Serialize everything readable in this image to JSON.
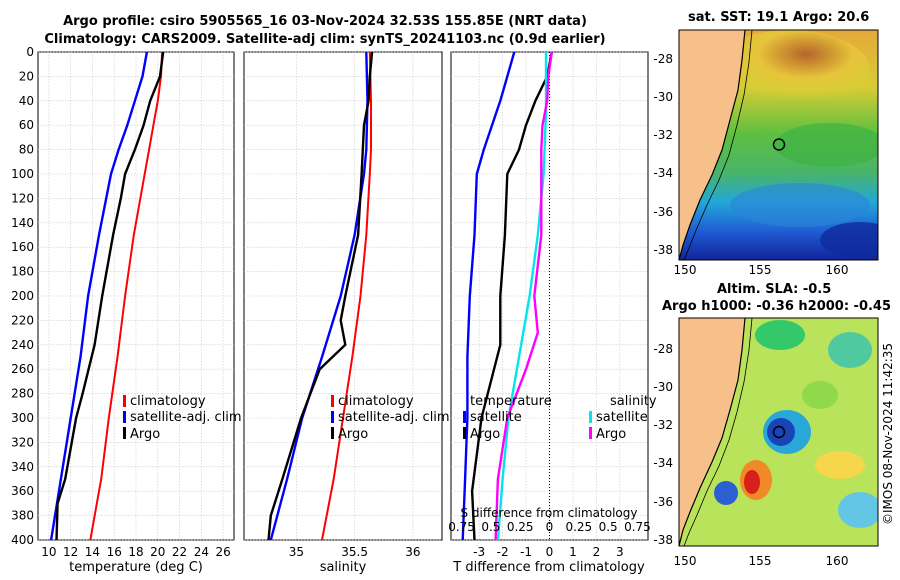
{
  "header": {
    "title_line1": "Argo profile: csiro 5905565_16 03-Nov-2024 32.53S 155.85E (NRT data)",
    "title_line2": "Climatology: CARS2009. Satellite-adj clim: synTS_20241103.nc (0.9d earlier)"
  },
  "maps": {
    "sst_title": "sat. SST: 19.1 Argo: 20.6",
    "sla_title_line1": "Altim. SLA: -0.5",
    "sla_title_line2": "Argo h1000: -0.36 h2000: -0.45",
    "lat_ticks": [
      "-28",
      "-30",
      "-32",
      "-34",
      "-36",
      "-38"
    ],
    "lon_ticks": [
      "150",
      "155",
      "160"
    ],
    "colors": {
      "land": "#f7c08b",
      "float_marker": "#000000"
    }
  },
  "stamp": "©IMOS 08-Nov-2024 11:42:35",
  "colors": {
    "climatology": "#ff0000",
    "satellite": "#0000ff",
    "argo": "#000000",
    "t_satellite": "#00e5ee",
    "s_argo": "#ff00ff"
  },
  "chart_data": [
    {
      "type": "line",
      "xlabel": "temperature (deg C)",
      "ylabel": "",
      "xlim": [
        9,
        27
      ],
      "ylim": [
        400,
        0
      ],
      "xticks": [
        "10",
        "12",
        "14",
        "16",
        "18",
        "20",
        "22",
        "24",
        "26"
      ],
      "yticks": [
        "0",
        "20",
        "40",
        "60",
        "80",
        "100",
        "120",
        "140",
        "160",
        "180",
        "200",
        "220",
        "240",
        "260",
        "280",
        "300",
        "320",
        "340",
        "360",
        "380",
        "400"
      ],
      "legend": [
        "climatology",
        "satellite-adj. clim",
        "Argo"
      ],
      "series": [
        {
          "name": "climatology",
          "depth": [
            0,
            20,
            40,
            60,
            80,
            100,
            150,
            200,
            250,
            300,
            350,
            400
          ],
          "values": [
            20.4,
            20.3,
            20.0,
            19.6,
            19.2,
            18.8,
            17.8,
            17.0,
            16.3,
            15.5,
            14.8,
            13.8
          ]
        },
        {
          "name": "satellite-adj. clim",
          "depth": [
            0,
            20,
            40,
            60,
            80,
            100,
            150,
            200,
            250,
            300,
            350,
            400
          ],
          "values": [
            19.0,
            18.6,
            17.9,
            17.2,
            16.4,
            15.7,
            14.6,
            13.6,
            12.9,
            12.0,
            11.1,
            10.2
          ]
        },
        {
          "name": "Argo",
          "depth": [
            0,
            20,
            40,
            60,
            80,
            100,
            120,
            150,
            200,
            240,
            280,
            300,
            350,
            370,
            400
          ],
          "values": [
            20.5,
            20.2,
            19.3,
            18.7,
            17.9,
            17.0,
            16.6,
            15.9,
            14.9,
            14.2,
            13.1,
            12.5,
            11.5,
            10.8,
            10.7
          ]
        }
      ]
    },
    {
      "type": "line",
      "xlabel": "salinity",
      "ylabel": "",
      "xlim": [
        34.55,
        36.25
      ],
      "ylim": [
        400,
        0
      ],
      "xticks": [
        "35",
        "35.5",
        "36"
      ],
      "legend": [
        "climatology",
        "satellite-adj. clim",
        "Argo"
      ],
      "series": [
        {
          "name": "climatology",
          "depth": [
            0,
            40,
            80,
            100,
            150,
            200,
            250,
            300,
            350,
            400
          ],
          "values": [
            35.63,
            35.64,
            35.64,
            35.63,
            35.6,
            35.55,
            35.48,
            35.4,
            35.32,
            35.22
          ]
        },
        {
          "name": "satellite-adj. clim",
          "depth": [
            0,
            40,
            80,
            100,
            150,
            200,
            250,
            300,
            350,
            400
          ],
          "values": [
            35.6,
            35.61,
            35.6,
            35.58,
            35.5,
            35.38,
            35.22,
            35.05,
            34.92,
            34.78
          ]
        },
        {
          "name": "Argo",
          "depth": [
            0,
            20,
            40,
            60,
            80,
            100,
            150,
            200,
            220,
            240,
            260,
            300,
            350,
            380,
            400
          ],
          "values": [
            35.65,
            35.63,
            35.62,
            35.58,
            35.57,
            35.56,
            35.53,
            35.42,
            35.38,
            35.42,
            35.2,
            35.04,
            34.88,
            34.78,
            34.76
          ]
        }
      ]
    },
    {
      "type": "line",
      "xlabel": "T difference from climatology",
      "top_xlabel": "S difference from climatology",
      "ylabel": "",
      "xlim": [
        -4.2,
        4.2
      ],
      "ylim": [
        400,
        0
      ],
      "xticks": [
        "-3",
        "-2",
        "-1",
        "0",
        "1",
        "2",
        "3"
      ],
      "top_xticks": [
        "0.75",
        "0.5",
        "0.25",
        "0",
        "0.25",
        "0.5",
        "0.75"
      ],
      "legend_left_title": "temperature",
      "legend_left": [
        "satellite",
        "Argo"
      ],
      "legend_right_title": "salinity",
      "legend_right": [
        "satellite",
        "Argo"
      ],
      "series": [
        {
          "name": "temperature satellite",
          "depth": [
            0,
            40,
            80,
            100,
            150,
            200,
            250,
            300,
            350,
            400
          ],
          "values": [
            -1.5,
            -2.1,
            -2.8,
            -3.1,
            -3.2,
            -3.4,
            -3.5,
            -3.5,
            -3.6,
            -3.7
          ]
        },
        {
          "name": "temperature Argo",
          "depth": [
            0,
            20,
            40,
            60,
            80,
            100,
            150,
            200,
            240,
            300,
            360,
            400
          ],
          "values": [
            0.1,
            -0.1,
            -0.6,
            -1.0,
            -1.3,
            -1.8,
            -1.9,
            -2.1,
            -2.1,
            -2.9,
            -3.3,
            -3.2
          ]
        },
        {
          "name": "salinity satellite",
          "depth": [
            0,
            50,
            100,
            150,
            200,
            250,
            300,
            350,
            400
          ],
          "values": [
            -0.03,
            -0.03,
            -0.05,
            -0.1,
            -0.17,
            -0.26,
            -0.35,
            -0.4,
            -0.44
          ]
        },
        {
          "name": "salinity Argo",
          "depth": [
            0,
            20,
            40,
            60,
            80,
            100,
            150,
            200,
            230,
            260,
            300,
            350,
            400
          ],
          "values": [
            0.02,
            -0.01,
            -0.02,
            -0.06,
            -0.07,
            -0.07,
            -0.07,
            -0.13,
            -0.1,
            -0.2,
            -0.36,
            -0.44,
            -0.46
          ]
        }
      ]
    }
  ]
}
